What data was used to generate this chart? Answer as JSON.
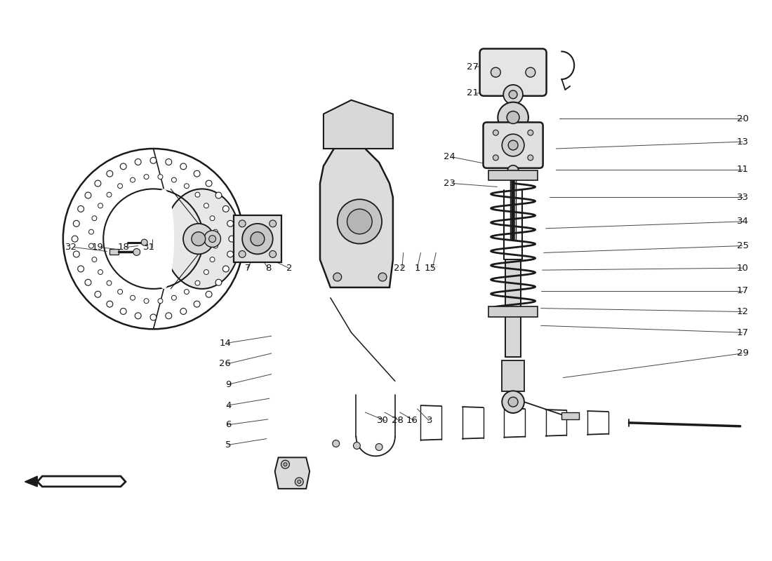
{
  "bg_color": "#ffffff",
  "line_color": "#1a1a1a",
  "label_color": "#111111",
  "figsize": [
    11.0,
    8.0
  ],
  "dpi": 100
}
